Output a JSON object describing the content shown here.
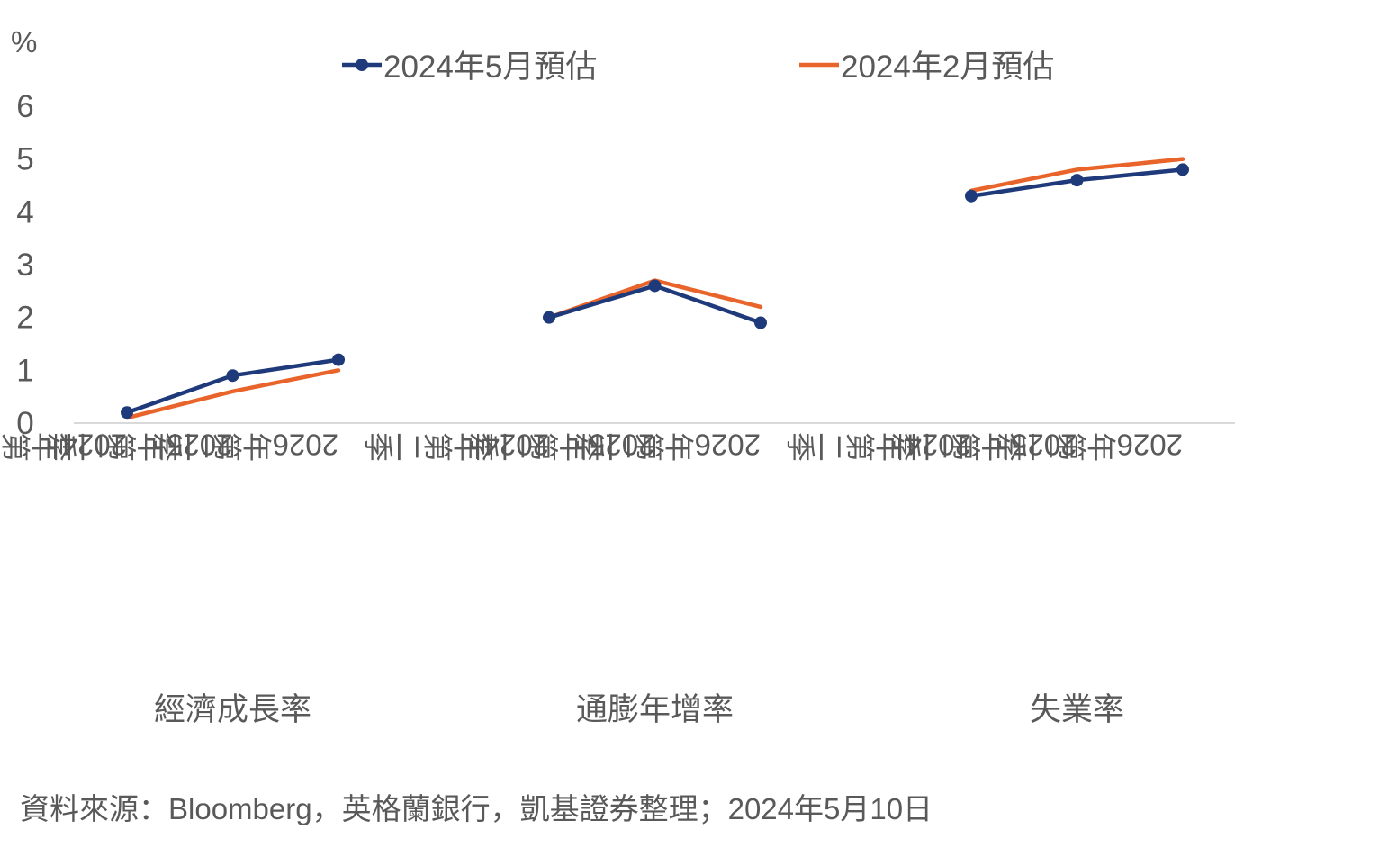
{
  "chart_data": {
    "type": "line",
    "unit_label": "%",
    "ylim": [
      0,
      6
    ],
    "yticks": [
      "0",
      "1",
      "2",
      "3",
      "4",
      "5",
      "6"
    ],
    "grid": false,
    "legend_position": "top",
    "groups": [
      {
        "label": "經濟成長率",
        "categories": [
          "2024年第二季",
          "2025年第二季",
          "2026年第二季"
        ]
      },
      {
        "label": "通膨年增率",
        "categories": [
          "2024年第二季",
          "2025年第二季",
          "2026年第二季"
        ]
      },
      {
        "label": "失業率",
        "categories": [
          "2024年第二季",
          "2025年第二季",
          "2026年第二季"
        ]
      }
    ],
    "series": [
      {
        "name": "2024年5月預估",
        "color": "#1f3a7a",
        "markers": true,
        "values": [
          [
            0.2,
            0.9,
            1.2
          ],
          [
            2.0,
            2.6,
            1.9
          ],
          [
            4.3,
            4.6,
            4.8
          ]
        ]
      },
      {
        "name": "2024年2月預估",
        "color": "#e8642a",
        "markers": false,
        "values": [
          [
            0.1,
            0.6,
            1.0
          ],
          [
            2.0,
            2.7,
            2.2
          ],
          [
            4.4,
            4.8,
            5.0
          ]
        ]
      }
    ]
  },
  "source": "資料來源：Bloomberg，英格蘭銀行，凱基證券整理；2024年5月10日"
}
